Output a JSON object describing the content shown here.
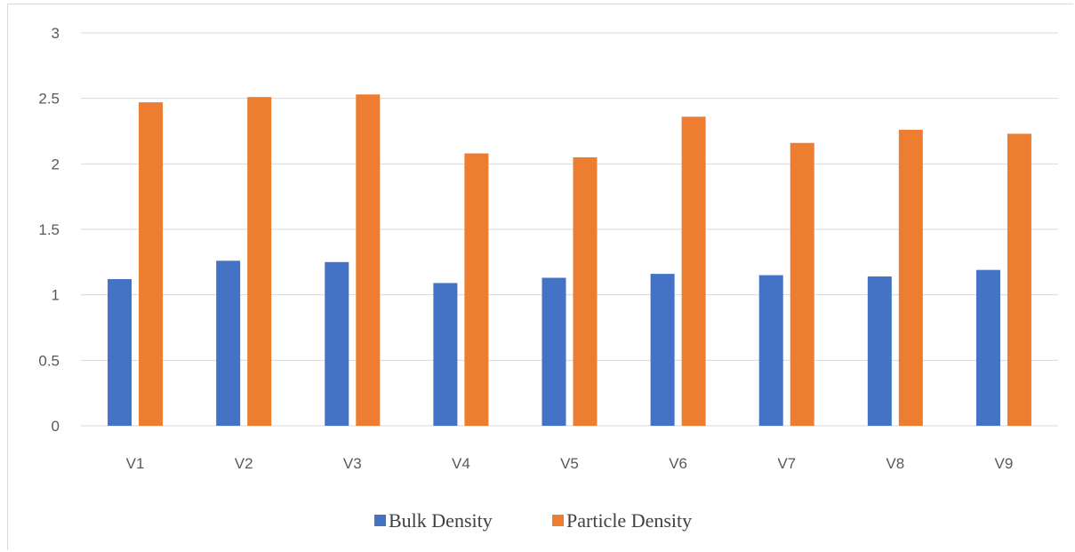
{
  "chart_data": {
    "type": "bar",
    "title": "",
    "xlabel": "",
    "ylabel": "",
    "categories": [
      "V1",
      "V2",
      "V3",
      "V4",
      "V5",
      "V6",
      "V7",
      "V8",
      "V9"
    ],
    "series": [
      {
        "name": "Bulk Density",
        "color": "#4472c4",
        "values": [
          1.12,
          1.26,
          1.25,
          1.09,
          1.13,
          1.16,
          1.15,
          1.14,
          1.19
        ]
      },
      {
        "name": "Particle Density",
        "color": "#ed7d31",
        "values": [
          2.47,
          2.51,
          2.53,
          2.08,
          2.05,
          2.36,
          2.16,
          2.26,
          2.23
        ]
      }
    ],
    "ylim": [
      0,
      3
    ],
    "yticks": [
      "0",
      "0.5",
      "1",
      "1.5",
      "2",
      "2.5",
      "3"
    ],
    "grid": true,
    "legend_position": "bottom"
  }
}
